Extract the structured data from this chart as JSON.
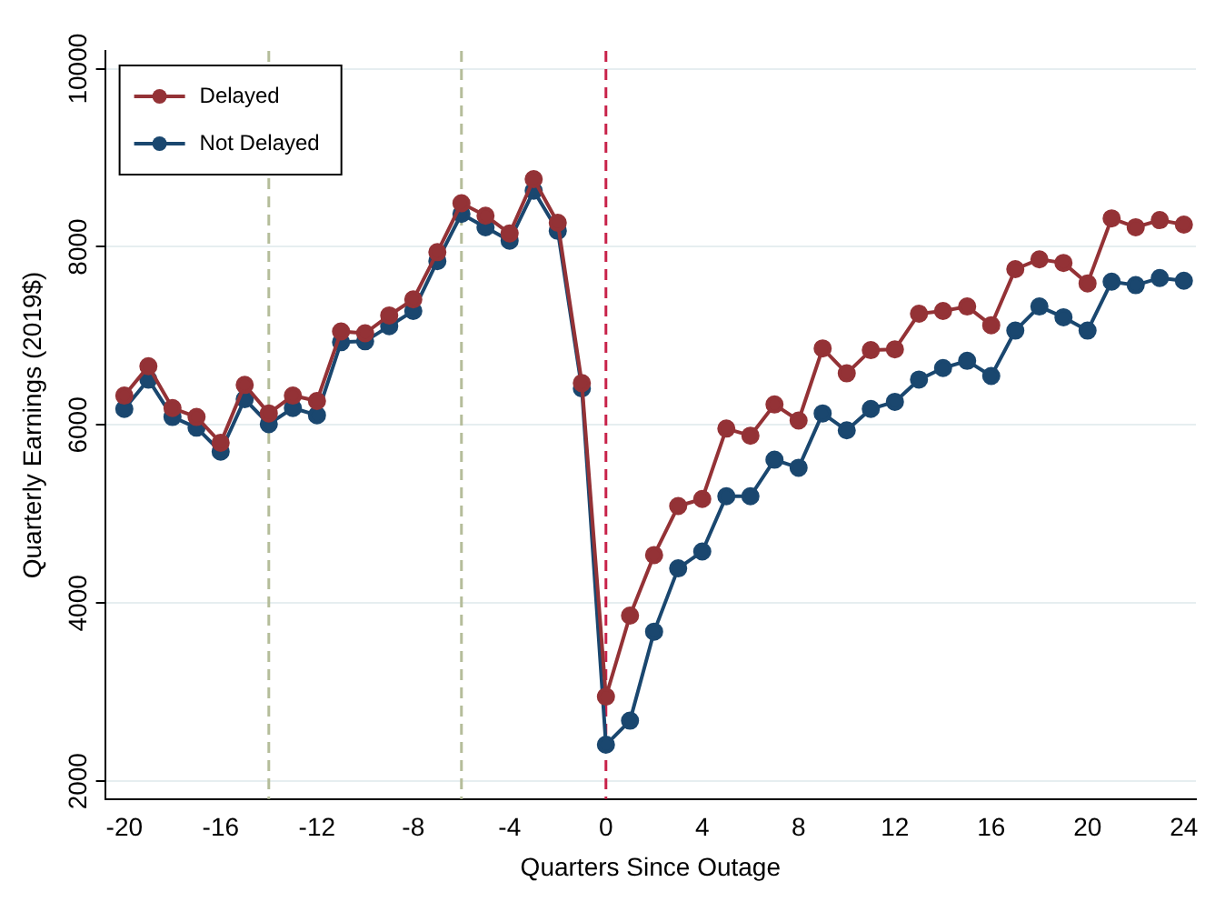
{
  "chart_data": {
    "type": "line",
    "xlabel": "Quarters Since Outage",
    "ylabel": "Quarterly Earnings (2019$)",
    "x": [
      -20,
      -19,
      -18,
      -17,
      -16,
      -15,
      -14,
      -13,
      -12,
      -11,
      -10,
      -9,
      -8,
      -7,
      -6,
      -5,
      -4,
      -3,
      -2,
      -1,
      0,
      1,
      2,
      3,
      4,
      5,
      6,
      7,
      8,
      9,
      10,
      11,
      12,
      13,
      14,
      15,
      16,
      17,
      18,
      19,
      20,
      21,
      22,
      23,
      24
    ],
    "series": [
      {
        "name": "Delayed",
        "color": "#943236",
        "values": [
          6330,
          6660,
          6190,
          6090,
          5800,
          6450,
          6130,
          6330,
          6270,
          7050,
          7030,
          7230,
          7410,
          7940,
          8490,
          8350,
          8150,
          8760,
          8270,
          6470,
          2950,
          3860,
          4540,
          5090,
          5170,
          5960,
          5880,
          6230,
          6050,
          6860,
          6580,
          6840,
          6850,
          7250,
          7280,
          7330,
          7120,
          7750,
          7860,
          7820,
          7590,
          8320,
          8220,
          8300,
          8250
        ]
      },
      {
        "name": "Not Delayed",
        "color": "#1a476f",
        "values": [
          6180,
          6510,
          6090,
          5970,
          5700,
          6290,
          6010,
          6190,
          6110,
          6930,
          6940,
          7110,
          7280,
          7840,
          8370,
          8220,
          8070,
          8630,
          8180,
          6410,
          2410,
          2680,
          3680,
          4390,
          4580,
          5200,
          5200,
          5610,
          5520,
          6130,
          5940,
          6180,
          6260,
          6510,
          6640,
          6720,
          6550,
          7060,
          7330,
          7210,
          7060,
          7610,
          7570,
          7650,
          7620
        ]
      }
    ],
    "xlim": [
      -20.8,
      24.5
    ],
    "ylim": [
      1800,
      10200
    ],
    "xticks": [
      -20,
      -16,
      -12,
      -8,
      -4,
      0,
      4,
      8,
      12,
      16,
      20,
      24
    ],
    "yticks": [
      2000,
      4000,
      6000,
      8000,
      10000
    ],
    "ref_lines": [
      {
        "axis": "x",
        "value": -14,
        "color": "#b5bd9a",
        "line_style": "dashed"
      },
      {
        "axis": "x",
        "value": -6,
        "color": "#b5bd9a",
        "line_style": "dashed"
      },
      {
        "axis": "x",
        "value": 0,
        "color": "#c8234a",
        "line_style": "dashed"
      }
    ],
    "grid": "y",
    "legend": "top left",
    "marker": "circle",
    "line_style": "solid"
  }
}
